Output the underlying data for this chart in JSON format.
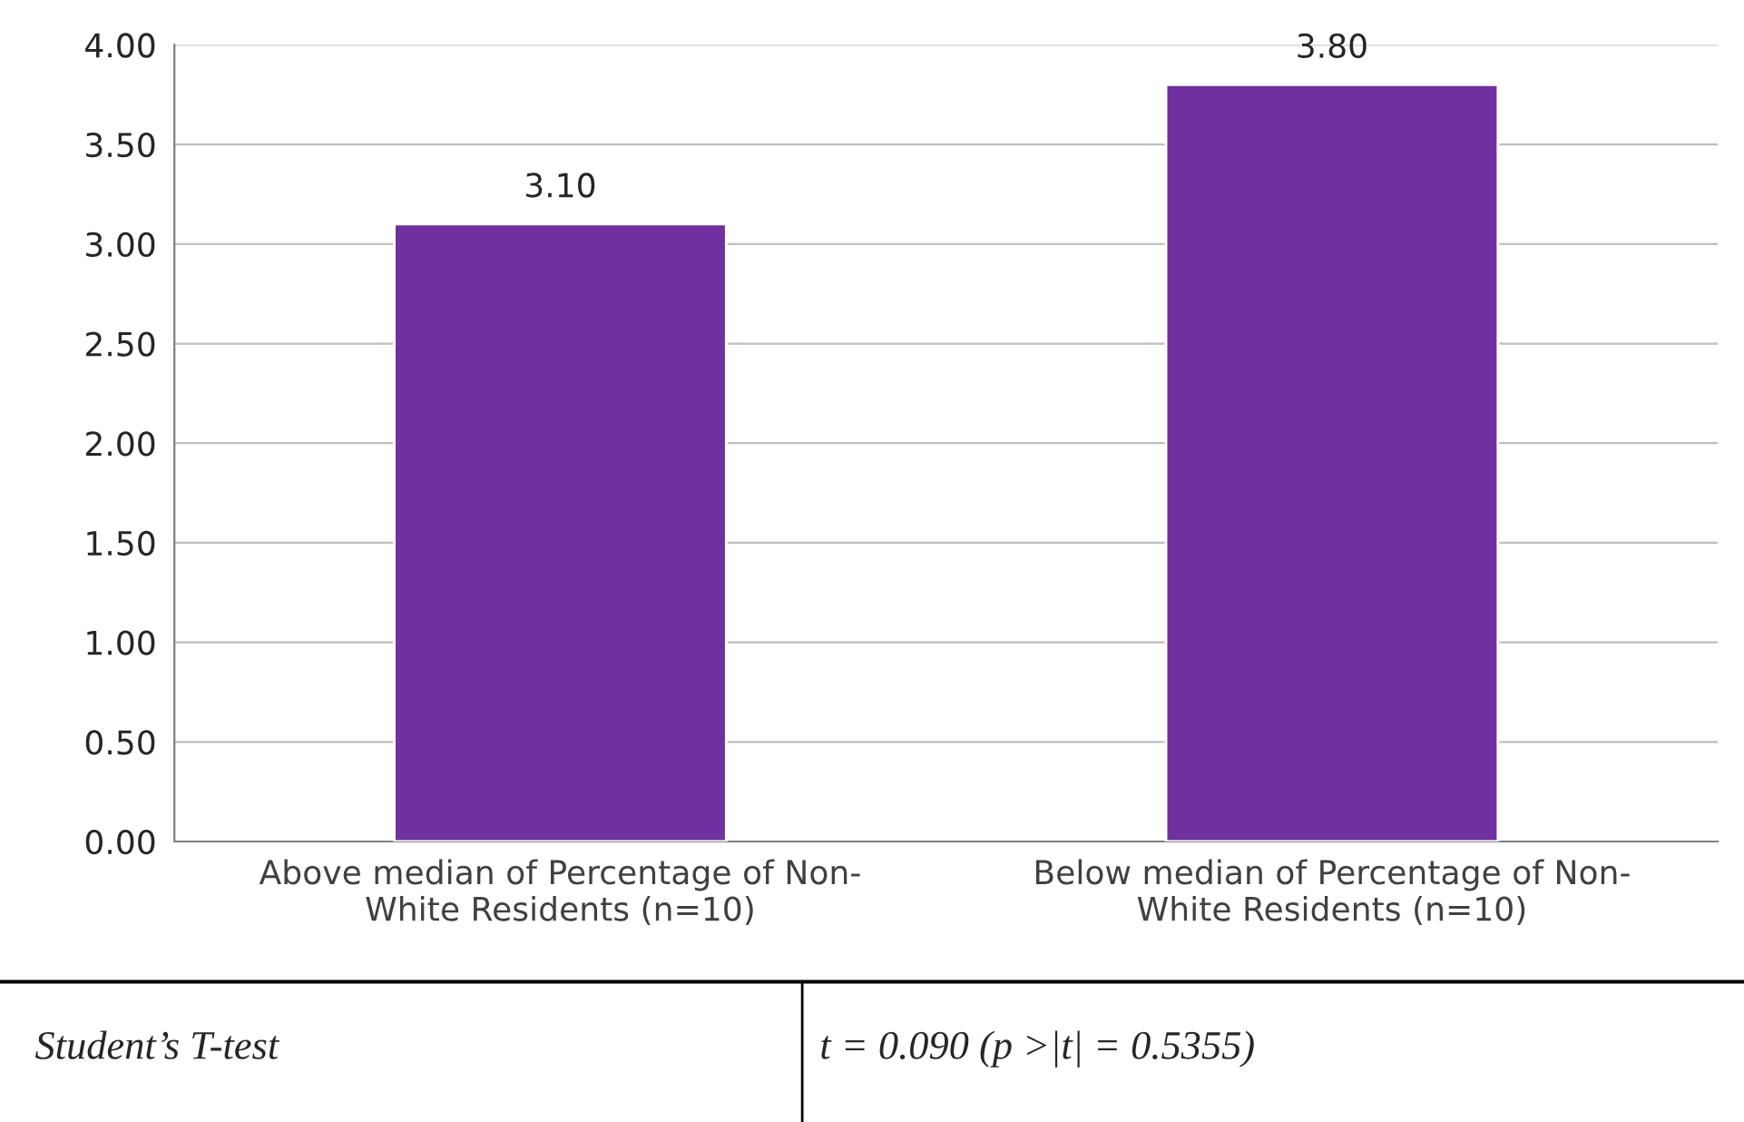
{
  "chart_data": {
    "type": "bar",
    "categories": [
      "Above median of Percentage of Non-White Residents (n=10)",
      "Below median of Percentage of Non-White Residents (n=10)"
    ],
    "values": [
      3.1,
      3.8
    ],
    "color": "#7030a0",
    "value_labels": [
      "3.10",
      "3.80"
    ],
    "ylim": [
      0,
      4
    ],
    "yticks": [
      {
        "value": 0,
        "label": "0.00"
      },
      {
        "value": 0.5,
        "label": "0.50"
      },
      {
        "value": 1,
        "label": "1.00"
      },
      {
        "value": 1.5,
        "label": "1.50"
      },
      {
        "value": 2,
        "label": "2.00"
      },
      {
        "value": 2.5,
        "label": "2.50"
      },
      {
        "value": 3,
        "label": "3.00"
      },
      {
        "value": 3.5,
        "label": "3.50"
      },
      {
        "value": 4,
        "label": "4.00"
      }
    ],
    "grid": "y",
    "annotations": [
      "Student’s T-test",
      "t = 0.090 (p >|t| = 0.5355)"
    ]
  }
}
